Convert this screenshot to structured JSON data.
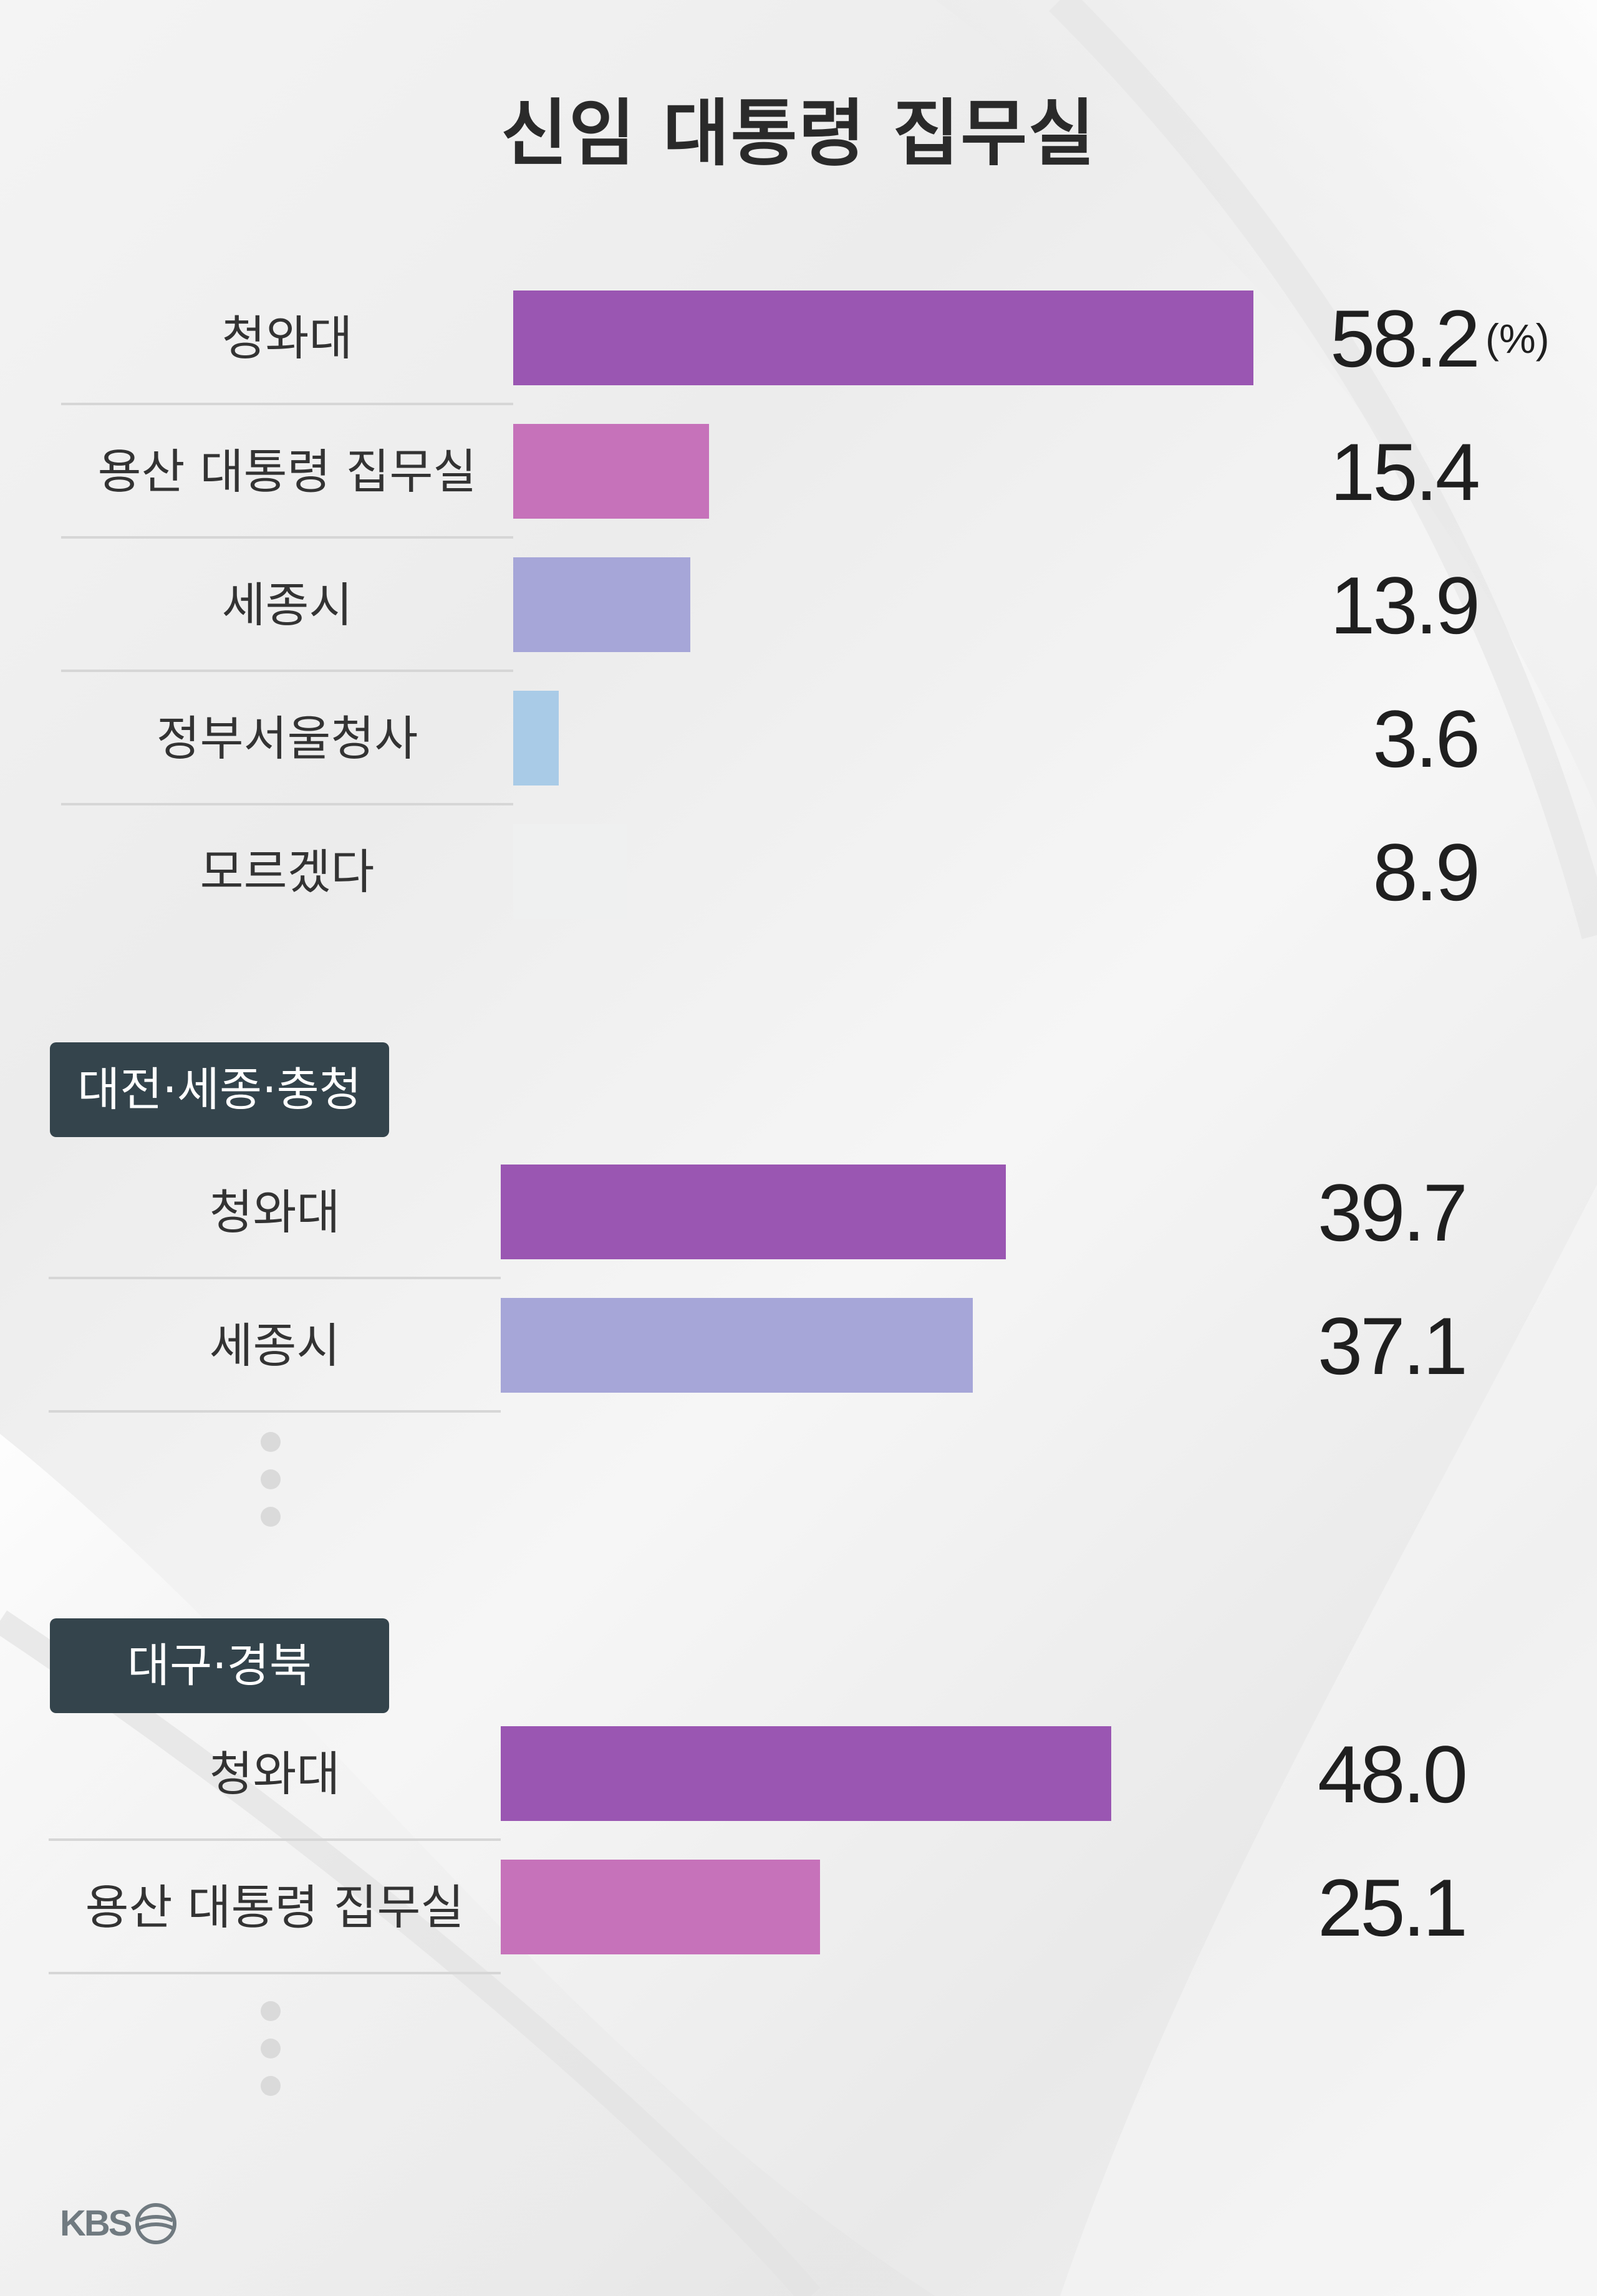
{
  "title": "신임 대통령 집무실",
  "colors": {
    "청와대": "#9a56b2",
    "용산 대통령 집무실": "#c672ba",
    "세종시": "#a6a6d8",
    "정부서울청사": "#a9cbe7",
    "모르겠다": "#eff0f0"
  },
  "unit_label": "(%)",
  "logo_text": "KBS",
  "chart_data": [
    {
      "type": "bar",
      "orientation": "horizontal",
      "title": "신임 대통령 집무실",
      "group": "",
      "unit": "(%)",
      "categories": [
        "청와대",
        "용산 대통령 집무실",
        "세종시",
        "정부서울청사",
        "모르겠다"
      ],
      "values": [
        58.2,
        15.4,
        13.9,
        3.6,
        8.9
      ],
      "value_labels": [
        "58.2",
        "15.4",
        "13.9",
        "3.6",
        "8.9"
      ]
    },
    {
      "type": "bar",
      "orientation": "horizontal",
      "group": "대전·세종·충청",
      "categories": [
        "청와대",
        "세종시"
      ],
      "values": [
        39.7,
        37.1
      ],
      "value_labels": [
        "39.7",
        "37.1"
      ],
      "truncated": true
    },
    {
      "type": "bar",
      "orientation": "horizontal",
      "group": "대구·경북",
      "categories": [
        "청와대",
        "용산 대통령 집무실"
      ],
      "values": [
        48.0,
        25.1
      ],
      "value_labels": [
        "48.0",
        "25.1"
      ],
      "truncated": true
    }
  ]
}
